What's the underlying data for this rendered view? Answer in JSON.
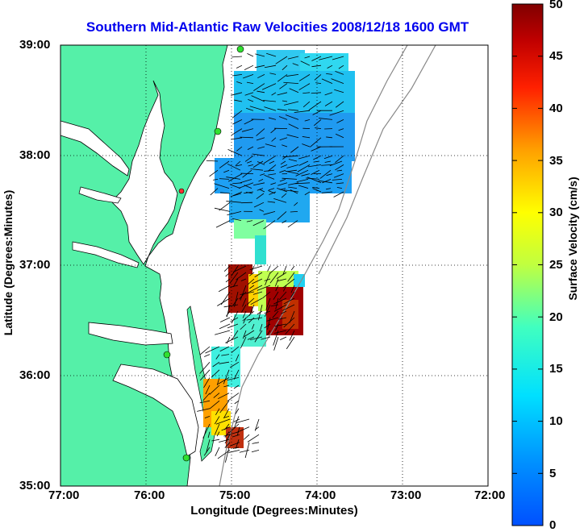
{
  "title": "Southern Mid-Atlantic Raw Velocities 2008/12/18 1600 GMT",
  "map": {
    "x_axis_label": "Longitude (Degrees:Minutes)",
    "y_axis_label": "Latitude (Degrees:Minutes)",
    "x_ticks": [
      "77:00",
      "76:00",
      "75:00",
      "74:00",
      "73:00",
      "72:00"
    ],
    "y_ticks": [
      "39:00",
      "38:00",
      "37:00",
      "36:00",
      "35:00"
    ],
    "lon_range": [
      -77,
      -72
    ],
    "lat_range": [
      35,
      39
    ],
    "land_color": "#55f0a8",
    "water_color": "#ffffff",
    "grid": "dotted"
  },
  "colorbar": {
    "label": "Surface Velocity (cm/s)",
    "min": 0,
    "max": 50,
    "ticks": [
      "0",
      "5",
      "10",
      "15",
      "20",
      "25",
      "30",
      "35",
      "40",
      "45",
      "50"
    ],
    "colormap": "jet"
  }
}
